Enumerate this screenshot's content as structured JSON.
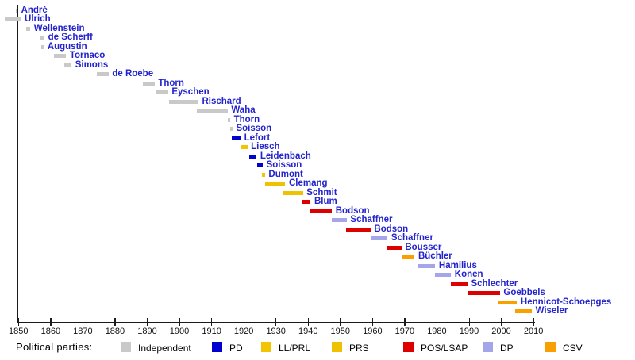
{
  "legend": {
    "title": "Political parties:",
    "items": [
      {
        "key": "independent",
        "label": "Independent",
        "color": "#c9c9c9"
      },
      {
        "key": "pd",
        "label": "PD",
        "color": "#0000d0"
      },
      {
        "key": "llprl",
        "label": "LL/PRL",
        "color": "#f2c500"
      },
      {
        "key": "prs",
        "label": "PRS",
        "color": "#eec200"
      },
      {
        "key": "poslsap",
        "label": "POS/LSAP",
        "color": "#dd0000"
      },
      {
        "key": "dp",
        "label": "DP",
        "color": "#a5a5e9"
      },
      {
        "key": "csv",
        "label": "CSV",
        "color": "#f7a000"
      }
    ]
  },
  "chart_data": {
    "type": "timeline",
    "title": "",
    "x_axis": {
      "min": 1850,
      "max": 2010,
      "tick_interval": 10,
      "ticks": [
        1850,
        1860,
        1870,
        1880,
        1890,
        1900,
        1910,
        1920,
        1930,
        1940,
        1950,
        1960,
        1970,
        1980,
        1990,
        2000,
        2010
      ]
    },
    "people": [
      {
        "name": "André",
        "party": "independent",
        "start": 1849.2,
        "end": 1849.7
      },
      {
        "name": "Ulrich",
        "party": "independent",
        "start": 1845.7,
        "end": 1850.8
      },
      {
        "name": "Wellenstein",
        "party": "independent",
        "start": 1852.5,
        "end": 1853.7
      },
      {
        "name": "de Scherff",
        "party": "independent",
        "start": 1856.7,
        "end": 1858.1
      },
      {
        "name": "Augustin",
        "party": "independent",
        "start": 1857.2,
        "end": 1857.9
      },
      {
        "name": "Tornaco",
        "party": "independent",
        "start": 1861.1,
        "end": 1864.8
      },
      {
        "name": "Simons",
        "party": "independent",
        "start": 1864.3,
        "end": 1866.5
      },
      {
        "name": "de Roebe",
        "party": "independent",
        "start": 1874.3,
        "end": 1878.0
      },
      {
        "name": "Thorn",
        "party": "independent",
        "start": 1888.6,
        "end": 1892.3
      },
      {
        "name": "Eyschen",
        "party": "independent",
        "start": 1892.8,
        "end": 1896.5
      },
      {
        "name": "Rischard",
        "party": "independent",
        "start": 1896.9,
        "end": 1905.9
      },
      {
        "name": "Waha",
        "party": "independent",
        "start": 1905.5,
        "end": 1915.0
      },
      {
        "name": "Thorn",
        "party": "independent",
        "start": 1915.0,
        "end": 1915.8
      },
      {
        "name": "Soisson",
        "party": "independent",
        "start": 1915.8,
        "end": 1916.5
      },
      {
        "name": "Lefort",
        "party": "pd",
        "start": 1916.3,
        "end": 1919.0
      },
      {
        "name": "Liesch",
        "party": "llprl",
        "start": 1919.0,
        "end": 1921.1
      },
      {
        "name": "Leidenbach",
        "party": "pd",
        "start": 1921.8,
        "end": 1924.0
      },
      {
        "name": "Soisson",
        "party": "pd",
        "start": 1924.2,
        "end": 1925.9
      },
      {
        "name": "Dumont",
        "party": "llprl",
        "start": 1925.6,
        "end": 1926.6
      },
      {
        "name": "Clemang",
        "party": "prs",
        "start": 1926.7,
        "end": 1932.9
      },
      {
        "name": "Schmit",
        "party": "prs",
        "start": 1932.3,
        "end": 1938.4
      },
      {
        "name": "Blum",
        "party": "poslsap",
        "start": 1938.1,
        "end": 1940.8
      },
      {
        "name": "Bodson",
        "party": "poslsap",
        "start": 1940.4,
        "end": 1947.4
      },
      {
        "name": "Schaffner",
        "party": "dp",
        "start": 1947.4,
        "end": 1952.0
      },
      {
        "name": "Bodson",
        "party": "poslsap",
        "start": 1951.8,
        "end": 1959.4
      },
      {
        "name": "Schaffner",
        "party": "dp",
        "start": 1959.4,
        "end": 1964.7
      },
      {
        "name": "Bousser",
        "party": "poslsap",
        "start": 1964.7,
        "end": 1969.0
      },
      {
        "name": "Büchler",
        "party": "csv",
        "start": 1969.4,
        "end": 1973.1
      },
      {
        "name": "Hamilius",
        "party": "dp",
        "start": 1974.2,
        "end": 1979.5
      },
      {
        "name": "Konen",
        "party": "dp",
        "start": 1979.5,
        "end": 1984.4
      },
      {
        "name": "Schlechter",
        "party": "poslsap",
        "start": 1984.3,
        "end": 1989.5
      },
      {
        "name": "Goebbels",
        "party": "poslsap",
        "start": 1989.5,
        "end": 1999.6
      },
      {
        "name": "Hennicot-Schoepges",
        "party": "csv",
        "start": 1999.2,
        "end": 2004.9
      },
      {
        "name": "Wiseler",
        "party": "csv",
        "start": 2004.4,
        "end": 2009.5
      }
    ]
  }
}
